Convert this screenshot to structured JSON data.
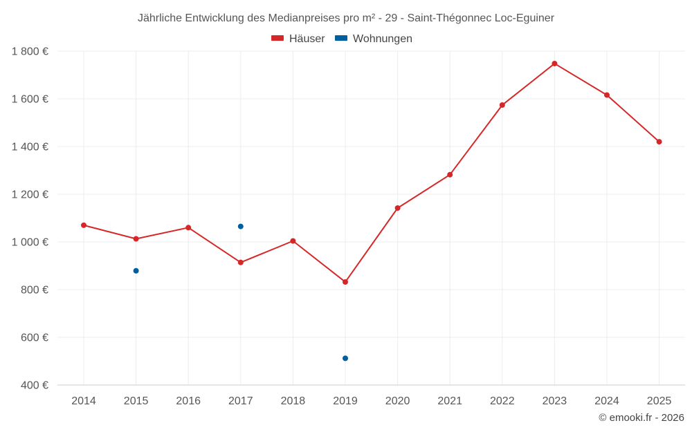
{
  "chart_data": {
    "type": "line",
    "title": "Jährliche Entwicklung des Medianpreises pro m² - 29 - Saint-Thégonnec Loc-Eguiner",
    "categories": [
      "2014",
      "2015",
      "2016",
      "2017",
      "2018",
      "2019",
      "2020",
      "2021",
      "2022",
      "2023",
      "2024",
      "2025"
    ],
    "ylim": [
      400,
      1800
    ],
    "yticks": [
      400,
      600,
      800,
      1000,
      1200,
      1400,
      1600,
      1800
    ],
    "ytick_labels": [
      "400 €",
      "600 €",
      "800 €",
      "1 000 €",
      "1 200 €",
      "1 400 €",
      "1 600 €",
      "1 800 €"
    ],
    "grid": true,
    "legend_position": "top-center",
    "series": [
      {
        "name": "Häuser",
        "color": "#d62728",
        "mode": "lines+markers",
        "values": [
          1070,
          1013,
          1060,
          914,
          1004,
          832,
          1142,
          1282,
          1574,
          1748,
          1616,
          1420
        ]
      },
      {
        "name": "Wohnungen",
        "color": "#005f9e",
        "mode": "markers",
        "values": [
          null,
          879,
          null,
          1065,
          null,
          512,
          null,
          null,
          null,
          null,
          null,
          null
        ]
      }
    ],
    "credit": "© emooki.fr - 2026"
  }
}
